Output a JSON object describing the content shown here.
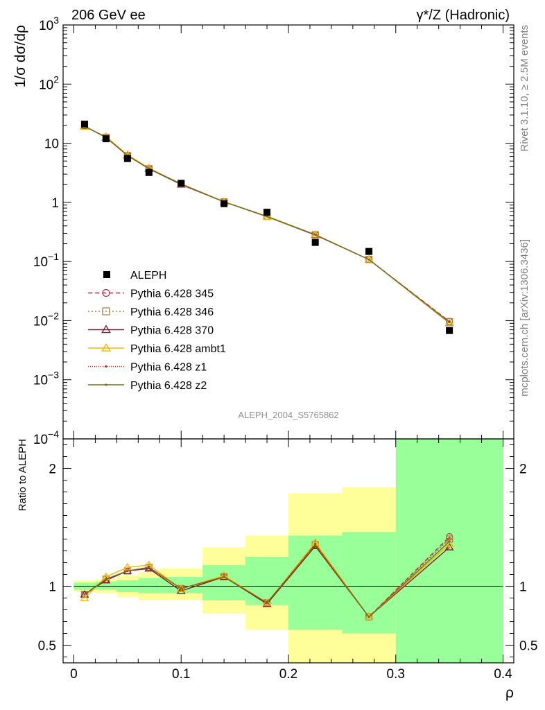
{
  "header": {
    "left": "206 GeV ee",
    "right": "γ*/Z (Hadronic)"
  },
  "side_text": {
    "rivet": "Rivet 3.1.10, ≥ 2.5M events",
    "mcplots": "mcplots.cern.ch [arXiv:1306.3436]"
  },
  "watermark": "ALEPH_2004_S5765862",
  "colors": {
    "yellow_band": "#ffff99",
    "green_band": "#99ff99",
    "data": "#000000"
  },
  "chart_data": [
    {
      "type": "line",
      "panel": "main",
      "ylabel": "1/σ dσ/dρ",
      "yscale": "log",
      "ylim": [
        0.0001,
        1000
      ],
      "xlim": [
        -0.01,
        0.41
      ],
      "y_tick_labels": [
        {
          "base": "10",
          "exp": "−4",
          "value": 0.0001
        },
        {
          "base": "10",
          "exp": "−3",
          "value": 0.001
        },
        {
          "base": "10",
          "exp": "−2",
          "value": 0.01
        },
        {
          "base": "10",
          "exp": "−1",
          "value": 0.1
        },
        {
          "base": "1",
          "exp": "",
          "value": 1
        },
        {
          "base": "10",
          "exp": "",
          "value": 10
        },
        {
          "base": "10",
          "exp": "2",
          "value": 100
        },
        {
          "base": "10",
          "exp": "3",
          "value": 1000
        }
      ],
      "x": [
        0.01,
        0.03,
        0.05,
        0.07,
        0.1,
        0.14,
        0.18,
        0.225,
        0.275,
        0.35
      ],
      "data_series": {
        "name": "ALEPH",
        "values": [
          21.0,
          11.9,
          5.5,
          3.2,
          2.1,
          0.95,
          0.68,
          0.21,
          0.148,
          0.0068
        ]
      },
      "series": [
        {
          "name": "Pythia 6.428 345",
          "color": "#c03040",
          "dash": "6,4",
          "marker": "circle",
          "values": [
            19.5,
            12.6,
            6.2,
            3.75,
            2.05,
            1.02,
            0.58,
            0.285,
            0.108,
            0.0097
          ]
        },
        {
          "name": "Pythia 6.428 346",
          "color": "#a08040",
          "dash": "2,3",
          "marker": "square",
          "values": [
            19.4,
            12.6,
            6.2,
            3.7,
            2.04,
            1.02,
            0.58,
            0.283,
            0.108,
            0.0096
          ]
        },
        {
          "name": "Pythia 6.428 370",
          "color": "#8b1a2a",
          "dash": "",
          "marker": "triangle",
          "values": [
            19.4,
            12.5,
            6.2,
            3.7,
            2.0,
            1.02,
            0.57,
            0.28,
            0.108,
            0.0091
          ]
        },
        {
          "name": "Pythia 6.428 ambt1",
          "color": "#f5b800",
          "dash": "",
          "marker": "triangle",
          "values": [
            19.0,
            12.9,
            6.4,
            3.8,
            2.04,
            1.03,
            0.57,
            0.285,
            0.108,
            0.0092
          ]
        },
        {
          "name": "Pythia 6.428 z1",
          "color": "#e02020",
          "dash": "1,2",
          "marker": "dot",
          "values": [
            19.5,
            12.6,
            6.2,
            3.75,
            2.05,
            1.02,
            0.58,
            0.284,
            0.108,
            0.0096
          ]
        },
        {
          "name": "Pythia 6.428 z2",
          "color": "#707020",
          "dash": "",
          "marker": "dot",
          "values": [
            19.4,
            12.6,
            6.2,
            3.72,
            2.04,
            1.02,
            0.58,
            0.284,
            0.108,
            0.0094
          ]
        }
      ]
    },
    {
      "type": "line",
      "panel": "ratio",
      "ylabel": "Ratio to ALEPH",
      "xlabel": "ρ",
      "ylim": [
        0.35,
        2.25
      ],
      "xlim": [
        -0.01,
        0.41
      ],
      "y_ticks": [
        0.5,
        1,
        2
      ],
      "y_tick_labels": [
        "0.5",
        "1",
        "2"
      ],
      "x_ticks": [
        0,
        0.1,
        0.2,
        0.3,
        0.4
      ],
      "x_tick_labels": [
        "0",
        "0.1",
        "0.2",
        "0.3",
        "0.4"
      ],
      "bins": [
        {
          "lo": 0.0,
          "hi": 0.02,
          "green": [
            0.97,
            1.03
          ],
          "yellow": [
            0.95,
            1.05
          ]
        },
        {
          "lo": 0.02,
          "hi": 0.04,
          "green": [
            0.97,
            1.04
          ],
          "yellow": [
            0.94,
            1.06
          ]
        },
        {
          "lo": 0.04,
          "hi": 0.06,
          "green": [
            0.95,
            1.05
          ],
          "yellow": [
            0.91,
            1.09
          ]
        },
        {
          "lo": 0.06,
          "hi": 0.08,
          "green": [
            0.94,
            1.07
          ],
          "yellow": [
            0.88,
            1.12
          ]
        },
        {
          "lo": 0.08,
          "hi": 0.12,
          "green": [
            0.94,
            1.08
          ],
          "yellow": [
            0.88,
            1.15
          ]
        },
        {
          "lo": 0.12,
          "hi": 0.16,
          "green": [
            0.88,
            1.18
          ],
          "yellow": [
            0.77,
            1.33
          ]
        },
        {
          "lo": 0.16,
          "hi": 0.2,
          "green": [
            0.84,
            1.25
          ],
          "yellow": [
            0.63,
            1.43
          ]
        },
        {
          "lo": 0.2,
          "hi": 0.25,
          "green": [
            0.63,
            1.43
          ],
          "yellow": [
            0.35,
            1.79
          ]
        },
        {
          "lo": 0.25,
          "hi": 0.3,
          "green": [
            0.6,
            1.46
          ],
          "yellow": [
            0.35,
            1.84
          ]
        },
        {
          "lo": 0.3,
          "hi": 0.4,
          "green": [
            0.35,
            2.25
          ],
          "yellow": [
            0.35,
            2.25
          ]
        }
      ],
      "x": [
        0.01,
        0.03,
        0.05,
        0.07,
        0.1,
        0.14,
        0.18,
        0.225,
        0.275,
        0.35
      ],
      "series": [
        {
          "name": "Pythia 6.428 345",
          "values": [
            0.93,
            1.06,
            1.13,
            1.16,
            0.98,
            1.08,
            0.86,
            1.36,
            0.74,
            1.42
          ]
        },
        {
          "name": "Pythia 6.428 346",
          "values": [
            0.93,
            1.06,
            1.13,
            1.16,
            0.98,
            1.08,
            0.86,
            1.35,
            0.74,
            1.4
          ]
        },
        {
          "name": "Pythia 6.428 370",
          "values": [
            0.93,
            1.05,
            1.13,
            1.15,
            0.96,
            1.08,
            0.85,
            1.34,
            0.74,
            1.33
          ]
        },
        {
          "name": "Pythia 6.428 ambt1",
          "values": [
            0.9,
            1.08,
            1.16,
            1.18,
            0.98,
            1.09,
            0.86,
            1.37,
            0.74,
            1.36
          ]
        },
        {
          "name": "Pythia 6.428 z1",
          "values": [
            0.93,
            1.06,
            1.13,
            1.16,
            0.98,
            1.08,
            0.86,
            1.36,
            0.74,
            1.41
          ]
        },
        {
          "name": "Pythia 6.428 z2",
          "values": [
            0.93,
            1.06,
            1.13,
            1.16,
            0.98,
            1.08,
            0.86,
            1.35,
            0.74,
            1.38
          ]
        }
      ]
    }
  ]
}
